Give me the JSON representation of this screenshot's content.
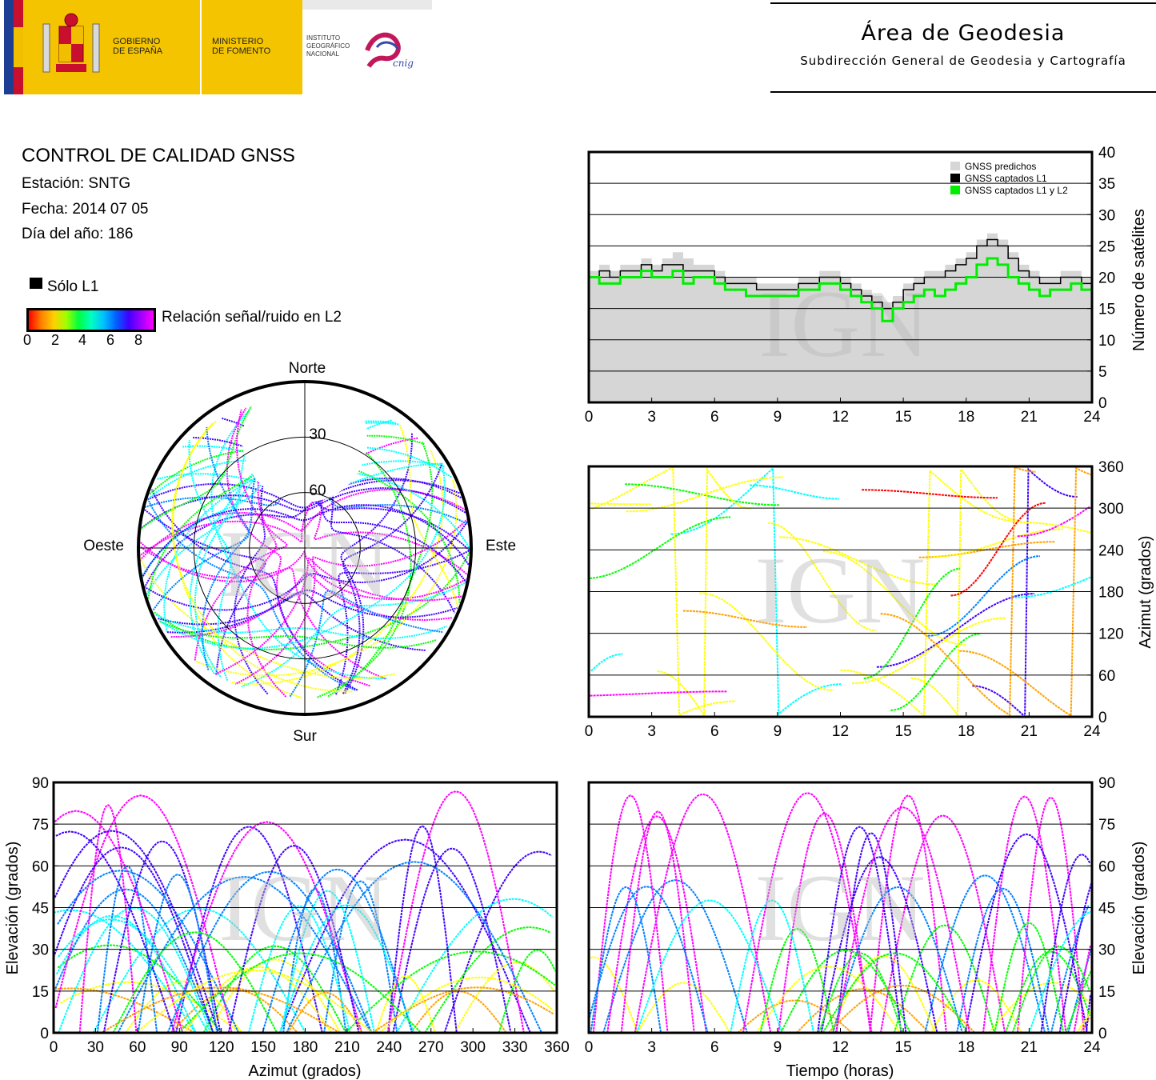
{
  "header": {
    "gov_line1": "GOBIERNO",
    "gov_line2": "DE ESPAÑA",
    "min_line1": "MINISTERIO",
    "min_line2": "DE FOMENTO",
    "ign_line1": "INSTITUTO",
    "ign_line2": "GEOGRÁFICO",
    "ign_line3": "NACIONAL",
    "cnig": "cnig",
    "area_title": "Área de Geodesia",
    "area_subtitle": "Subdirección General de Geodesia y Cartografía"
  },
  "info": {
    "title": "CONTROL DE CALIDAD GNSS",
    "station": "Estación: SNTG",
    "date": "Fecha: 2014 07 05",
    "doy": "Día del año: 186",
    "legend_l1": "Sólo L1",
    "legend_snr": "Relación señal/ruido en L2",
    "snr_ticks": [
      "0",
      "2",
      "4",
      "6",
      "8"
    ]
  },
  "colors": {
    "predicted": "#d6d6d6",
    "captured_l1": "#000000",
    "captured_l1_l2": "#00ee00",
    "snr_scale": [
      "#ff0000",
      "#ffa000",
      "#ffff00",
      "#00ff00",
      "#00ffff",
      "#0080ff",
      "#4000ff",
      "#ff00ff"
    ]
  },
  "watermark": "IGN",
  "chart_data": [
    {
      "type": "area",
      "id": "satellites_vs_time",
      "ylabel": "Número de satélites",
      "xlim": [
        0,
        24
      ],
      "ylim": [
        0,
        40
      ],
      "x_ticks": [
        "0",
        "3",
        "6",
        "9",
        "12",
        "15",
        "18",
        "21",
        "24"
      ],
      "y_ticks": [
        "0",
        "5",
        "10",
        "15",
        "20",
        "25",
        "30",
        "35",
        "40"
      ],
      "grid": true,
      "legend": [
        "GNSS predichos",
        "GNSS captados L1",
        "GNSS captados L1 y L2"
      ],
      "legend_position": "top-right",
      "x": [
        0,
        0.5,
        1,
        1.5,
        2,
        2.5,
        3,
        3.5,
        4,
        4.5,
        5,
        5.5,
        6,
        6.5,
        7,
        7.5,
        8,
        8.5,
        9,
        9.5,
        10,
        10.5,
        11,
        11.5,
        12,
        12.5,
        13,
        13.5,
        14,
        14.5,
        15,
        15.5,
        16,
        16.5,
        17,
        17.5,
        18,
        18.5,
        19,
        19.5,
        20,
        20.5,
        21,
        21.5,
        22,
        22.5,
        23,
        23.5,
        24
      ],
      "series": [
        {
          "name": "GNSS predichos",
          "values": [
            21,
            22,
            21,
            22,
            22,
            23,
            22,
            23,
            24,
            23,
            22,
            22,
            21,
            20,
            20,
            20,
            19,
            19,
            19,
            19,
            20,
            20,
            21,
            21,
            20,
            19,
            18,
            17,
            16,
            17,
            19,
            20,
            21,
            21,
            22,
            23,
            24,
            26,
            27,
            26,
            24,
            22,
            21,
            20,
            20,
            21,
            21,
            20,
            20
          ]
        },
        {
          "name": "GNSS captados L1",
          "values": [
            20,
            21,
            20,
            21,
            21,
            22,
            21,
            22,
            22,
            21,
            21,
            21,
            20,
            19,
            19,
            19,
            18,
            18,
            18,
            18,
            19,
            19,
            20,
            20,
            19,
            18,
            17,
            16,
            15,
            16,
            18,
            19,
            20,
            20,
            21,
            22,
            23,
            25,
            26,
            25,
            23,
            21,
            20,
            19,
            19,
            20,
            20,
            19,
            19
          ]
        },
        {
          "name": "GNSS captados L1 y L2",
          "values": [
            20,
            19,
            19,
            20,
            20,
            21,
            20,
            20,
            21,
            19,
            20,
            20,
            19,
            18,
            18,
            17,
            17,
            17,
            17,
            17,
            18,
            18,
            19,
            19,
            18,
            17,
            16,
            15,
            13,
            15,
            16,
            17,
            18,
            17,
            18,
            19,
            20,
            22,
            23,
            22,
            20,
            19,
            18,
            17,
            18,
            18,
            19,
            18,
            18
          ]
        }
      ]
    },
    {
      "type": "scatter",
      "id": "skyplot",
      "labels": {
        "north": "Norte",
        "south": "Sur",
        "west": "Oeste",
        "east": "Este"
      },
      "rings": [
        "30",
        "60"
      ],
      "note_color": "color encodes L2 SNR"
    },
    {
      "type": "scatter",
      "id": "azimuth_vs_time",
      "ylabel": "Azimut (grados)",
      "xlim": [
        0,
        24
      ],
      "ylim": [
        0,
        360
      ],
      "x_ticks": [
        "0",
        "3",
        "6",
        "9",
        "12",
        "15",
        "18",
        "21",
        "24"
      ],
      "y_ticks": [
        "0",
        "60",
        "120",
        "180",
        "240",
        "300",
        "360"
      ],
      "grid": true
    },
    {
      "type": "scatter",
      "id": "elevation_vs_azimuth",
      "xlabel": "Azimut (grados)",
      "ylabel": "Elevación (grados)",
      "xlim": [
        0,
        360
      ],
      "ylim": [
        0,
        90
      ],
      "x_ticks": [
        "0",
        "30",
        "60",
        "90",
        "120",
        "150",
        "180",
        "210",
        "240",
        "270",
        "300",
        "330",
        "360"
      ],
      "y_ticks": [
        "0",
        "15",
        "30",
        "45",
        "60",
        "75",
        "90"
      ],
      "grid": true
    },
    {
      "type": "scatter",
      "id": "elevation_vs_time",
      "xlabel": "Tiempo (horas)",
      "ylabel": "Elevación (grados)",
      "xlim": [
        0,
        24
      ],
      "ylim": [
        0,
        90
      ],
      "x_ticks": [
        "0",
        "3",
        "6",
        "9",
        "12",
        "15",
        "18",
        "21",
        "24"
      ],
      "y_ticks": [
        "0",
        "15",
        "30",
        "45",
        "60",
        "75",
        "90"
      ],
      "grid": true
    }
  ]
}
